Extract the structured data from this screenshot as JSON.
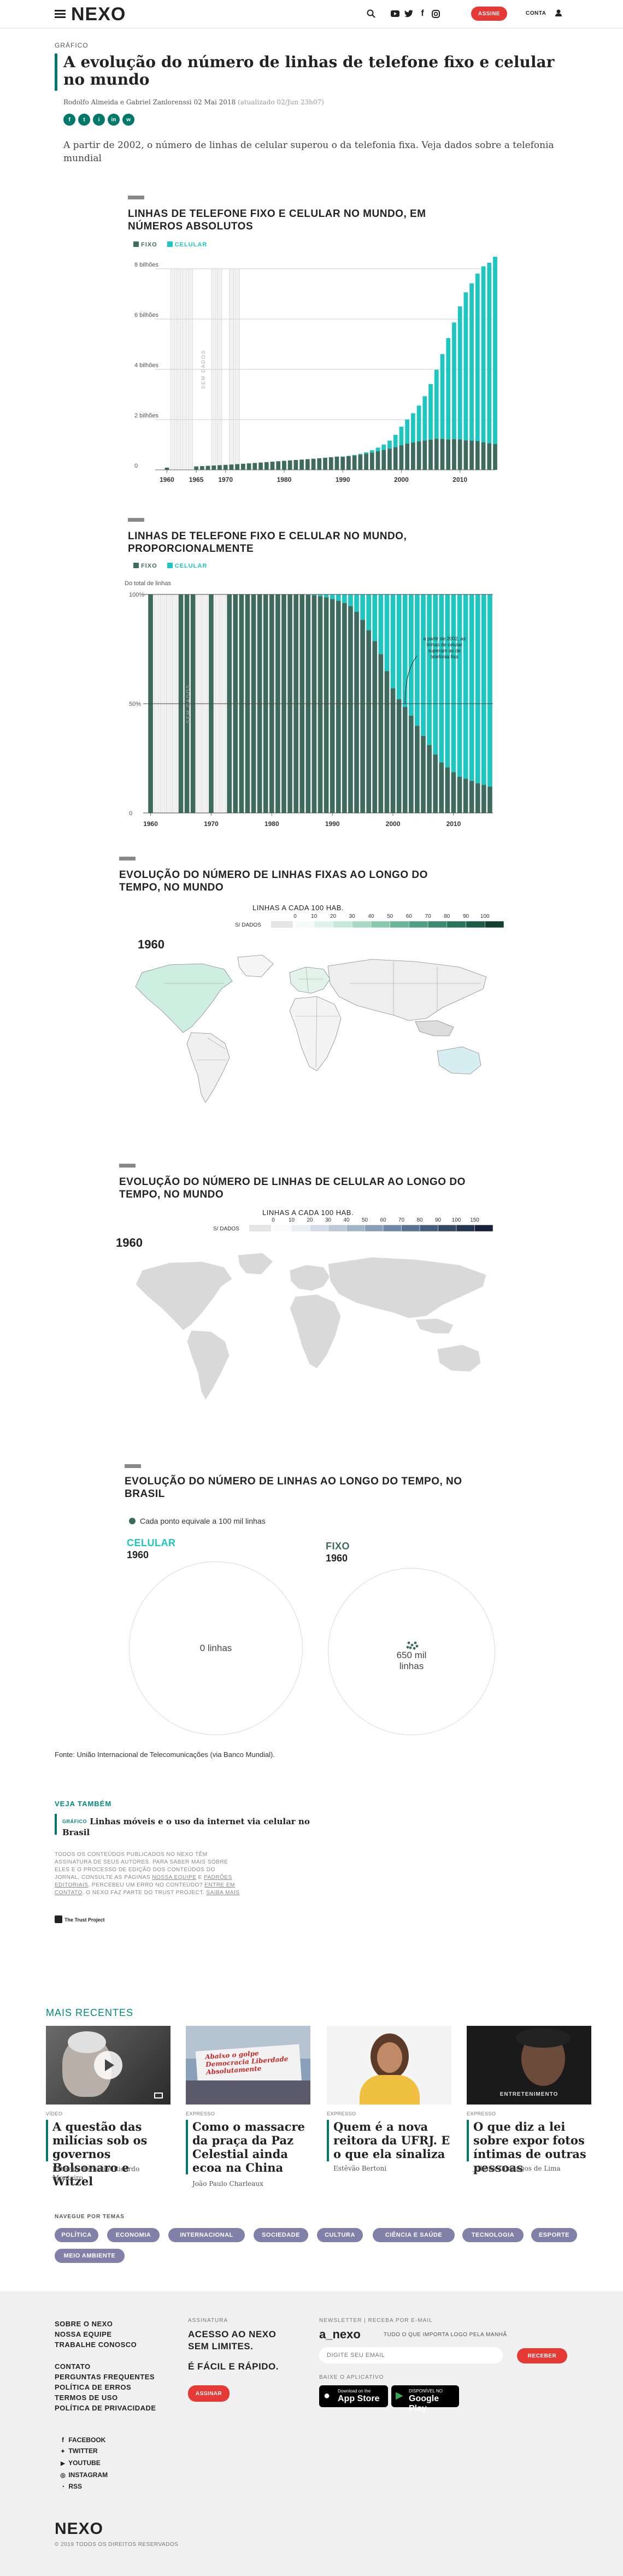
{
  "header": {
    "logo": "NEXO",
    "subscribe": "ASSINE",
    "account": "CONTA"
  },
  "article": {
    "kicker": "GRÁFICO",
    "title": "A evolução do número de linhas de telefone fixo e celular no mundo",
    "authors": "Rodolfo Almeida e Gabriel Zanlorenssi",
    "date": "02 Mai 2018",
    "updated": "(atualizado 02/Jun 23h07)",
    "social": [
      "f",
      "t",
      "i",
      "in",
      "w"
    ],
    "lead": "A partir de 2002, o número de linhas de celular superou o da telefonia fixa. Veja dados sobre a telefonia mundial"
  },
  "chart1": {
    "chart_data": {
      "type": "bar",
      "title": "LINHAS DE TELEFONE FIXO E CELULAR NO MUNDO, EM NÚMEROS ABSOLUTOS",
      "legend": [
        "FIXO",
        "CELULAR"
      ],
      "colors": {
        "fixo": "#3e6b5e",
        "celular": "#1dc6c1"
      },
      "ytick_labels": [
        "8 bilhões",
        "6 bilhões",
        "4 bilhões",
        "2 bilhões",
        "0"
      ],
      "xtick_labels": [
        "1960",
        "1965",
        "1970",
        "1980",
        "1990",
        "2000",
        "2010"
      ],
      "ylim": [
        0,
        8000
      ],
      "missing_label": "SEM DADOS",
      "years": [
        1960,
        1965,
        1966,
        1967,
        1968,
        1969,
        1970,
        1971,
        1972,
        1973,
        1974,
        1975,
        1976,
        1977,
        1978,
        1979,
        1980,
        1981,
        1982,
        1983,
        1984,
        1985,
        1986,
        1987,
        1988,
        1989,
        1990,
        1991,
        1992,
        1993,
        1994,
        1995,
        1996,
        1997,
        1998,
        1999,
        2000,
        2001,
        2002,
        2003,
        2004,
        2005,
        2006,
        2007,
        2008,
        2009,
        2010,
        2011,
        2012,
        2013,
        2014,
        2015,
        2016
      ],
      "fixo": [
        89,
        137,
        149,
        161,
        173,
        186,
        199,
        213,
        228,
        243,
        259,
        275,
        291,
        308,
        325,
        342,
        360,
        376,
        392,
        408,
        425,
        443,
        461,
        481,
        503,
        526,
        520,
        545,
        572,
        604,
        644,
        689,
        739,
        792,
        846,
        905,
        978,
        1045,
        1092,
        1137,
        1170,
        1203,
        1237,
        1236,
        1210,
        1224,
        1214,
        1173,
        1162,
        1150,
        1100,
        1061,
        1030
      ],
      "celular": [
        0,
        0,
        0,
        0,
        0,
        0,
        0,
        0,
        0,
        0,
        0,
        0,
        0,
        0,
        0,
        0,
        0,
        0,
        0,
        0,
        0,
        0,
        1,
        2,
        4,
        7,
        11,
        16,
        23,
        34,
        55,
        90,
        145,
        215,
        318,
        490,
        738,
        961,
        1160,
        1420,
        1760,
        2210,
        2745,
        3370,
        4030,
        4640,
        5290,
        5890,
        6260,
        6660,
        7000,
        7180,
        7510
      ]
    }
  },
  "chart2": {
    "chart_data": {
      "type": "bar",
      "title": "LINHAS DE TELEFONE FIXO E CELULAR NO MUNDO, PROPORCIONALMENTE",
      "legend": [
        "FIXO",
        "CELULAR"
      ],
      "ylabel": "Do total de linhas",
      "ytick_labels": [
        "100%",
        "50%",
        "0"
      ],
      "xtick_labels": [
        "1960",
        "1970",
        "1980",
        "1990",
        "2000",
        "2010"
      ],
      "annotation": "a partir de 2002, as linhas de celular superam as de telefonia fixa",
      "missing_label": "SEM DADOS",
      "years": [
        1960,
        1961,
        1962,
        1963,
        1964,
        1965,
        1966,
        1967,
        1968,
        1969,
        1970,
        1971,
        1972,
        1973,
        1974,
        1975,
        1976,
        1977,
        1978,
        1979,
        1980,
        1981,
        1982,
        1983,
        1984,
        1985,
        1986,
        1987,
        1988,
        1989,
        1990,
        1991,
        1992,
        1993,
        1994,
        1995,
        1996,
        1997,
        1998,
        1999,
        2000,
        2001,
        2002,
        2003,
        2004,
        2005,
        2006,
        2007,
        2008,
        2009,
        2010,
        2011,
        2012,
        2013,
        2014,
        2015,
        2016
      ],
      "celular_pct": [
        0,
        null,
        null,
        null,
        null,
        0,
        0,
        0,
        null,
        null,
        0,
        null,
        null,
        0,
        0,
        0,
        0,
        0,
        0,
        0,
        0,
        0,
        0,
        0,
        0,
        0,
        0.2,
        0.4,
        0.8,
        1.3,
        2.1,
        2.9,
        3.9,
        5.3,
        7.9,
        11.6,
        16.4,
        21.4,
        27.3,
        35.1,
        43.0,
        47.9,
        51.5,
        55.5,
        60.1,
        64.7,
        68.9,
        73.2,
        76.9,
        79.1,
        81.3,
        83.4,
        84.3,
        85.3,
        86.4,
        87.1,
        87.9
      ]
    }
  },
  "map1": {
    "title": "EVOLUÇÃO DO NÚMERO DE LINHAS FIXAS AO LONGO DO TEMPO, NO MUNDO",
    "scale_title": "LINHAS A CADA 100 HAB.",
    "scale_no_data": "S/ DADOS",
    "scale_ticks": [
      "0",
      "10",
      "20",
      "30",
      "40",
      "50",
      "60",
      "70",
      "80",
      "90",
      "100"
    ],
    "year": "1960"
  },
  "map2": {
    "title": "EVOLUÇÃO DO NÚMERO DE LINHAS DE CELULAR AO LONGO DO TEMPO, NO MUNDO",
    "scale_title": "LINHAS A CADA 100 HAB.",
    "scale_no_data": "S/ DADOS",
    "scale_ticks": [
      "0",
      "10",
      "20",
      "30",
      "40",
      "50",
      "60",
      "70",
      "80",
      "90",
      "100",
      "150"
    ],
    "year": "1960"
  },
  "brazil": {
    "title": "EVOLUÇÃO DO NÚMERO DE LINHAS AO LONGO DO TEMPO, NO BRASIL",
    "dot_legend": "Cada ponto equivale a 100 mil linhas",
    "cel_label": "CELULAR",
    "cel_year": "1960",
    "cel_value": "0 linhas",
    "fixo_label": "FIXO",
    "fixo_year": "1960",
    "fixo_value": "650 mil linhas"
  },
  "source": "Fonte: União Internacional de Telecomunicações (via Banco Mundial).",
  "see_also": {
    "heading": "VEJA TAMBÉM",
    "kicker": "GRÁFICO",
    "title": "Linhas móveis e o uso da internet via celular no Brasil"
  },
  "disclaimer": {
    "text": "TODOS OS CONTEÚDOS PUBLICADOS NO NEXO TÊM ASSINATURA DE SEUS AUTORES. PARA SABER MAIS SOBRE ELES E O PROCESSO DE EDIÇÃO DOS CONTEÚDOS DO JORNAL, CONSULTE AS PÁGINAS",
    "link1": "NOSSA EQUIPE",
    "and": "E",
    "link2": "PADRÕES EDITORIAIS",
    "text2": ". PERCEBEU UM ERRO NO CONTEÚDO?",
    "link3": "ENTRE EM CONTATO",
    "text3": ". O NEXO FAZ PARTE DO TRUST PROJECT.",
    "link4": "SAIBA MAIS",
    "trust": "The Trust Project"
  },
  "recent": {
    "heading": "MAIS RECENTES",
    "items": [
      {
        "kicker": "VÍDEO",
        "title": "A questão das milícias sob os governos Bolsonaro e Witzel",
        "author": "Estêvão Bertoni e Ricardo Monteiro"
      },
      {
        "kicker": "EXPRESSO",
        "title": "Como o massacre da praça da Paz Celestial ainda ecoa na China",
        "author": "João Paulo Charleaux"
      },
      {
        "kicker": "EXPRESSO",
        "title": "Quem é a nova reitora da UFRJ. E o que ela sinaliza",
        "author": "Estêvão Bertoni"
      },
      {
        "kicker": "EXPRESSO",
        "title": "O que diz a lei sobre expor fotos íntimas de outras pessoas",
        "author": "Juliana Domingos de Lima"
      }
    ],
    "photo_sign": [
      "Abaixo o",
      "golpe",
      "Democracia",
      "Liberdade",
      "Absolutamente"
    ],
    "photo_sign2": "ENTRETENIMENTO"
  },
  "themes": {
    "heading": "NAVEGUE POR TEMAS",
    "tags": [
      "POLÍTICA",
      "ECONOMIA",
      "INTERNACIONAL",
      "SOCIEDADE",
      "CULTURA",
      "CIÊNCIA E SAÚDE",
      "TECNOLOGIA",
      "ESPORTE",
      "MEIO AMBIENTE"
    ]
  },
  "footer": {
    "col1": [
      "SOBRE O NEXO",
      "NOSSA EQUIPE",
      "TRABALHE CONOSCO"
    ],
    "col1b": [
      "CONTATO",
      "PERGUNTAS FREQUENTES",
      "POLÍTICA DE ERROS",
      "TERMOS DE USO",
      "POLÍTICA DE PRIVACIDADE"
    ],
    "social": [
      "FACEBOOK",
      "TWITTER",
      "YOUTUBE",
      "INSTAGRAM",
      "RSS"
    ],
    "sub_label": "ASSINATURA",
    "sub_text1": "ACESSO AO NEXO SEM LIMITES.",
    "sub_text2": "É FÁCIL E RÁPIDO.",
    "sub_button": "ASSINAR",
    "nl_label": "NEWSLETTER | RECEBA POR E-MAIL",
    "nl_logo": "a_nexo",
    "nl_tagline": "TUDO O QUE IMPORTA LOGO PELA MANHÃ",
    "nl_placeholder": "DIGITE SEU EMAIL",
    "nl_button": "RECEBER",
    "app_label": "BAIXE O APLICATIVO",
    "appstore_small": "Download on the",
    "appstore": "App Store",
    "gplay_small": "DISPONÍVEL NO",
    "gplay": "Google Play",
    "logo": "NEXO",
    "copyright": "© 2019 TODOS OS DIREITOS RESERVADOS"
  }
}
